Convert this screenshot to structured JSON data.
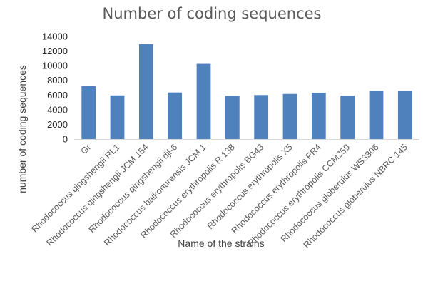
{
  "chart_data": {
    "type": "bar",
    "title": "Number of coding sequences",
    "xlabel": "Name of the strains",
    "ylabel": "number of coding sequences",
    "ylim": [
      0,
      14000
    ],
    "yticks": [
      0,
      2000,
      4000,
      6000,
      8000,
      10000,
      12000,
      14000
    ],
    "grid": false,
    "legend": "none",
    "bar_color": "#4F81BD",
    "categories": [
      "Gr",
      "Rhodococcus qingshengii RL1",
      "Rhodococcus qingshengii JCM 154",
      "Rhodococcus qingshengii djl-6",
      "Rhodococcus baikonurensis JCM 1",
      "Rhodococcus erythropolis R 138",
      "Rhodococcus erythropolis BG43",
      "Rhodococcus erythropolis X5",
      "Rhodococcus erythropolis PR4",
      "Rhodococcus erythropolis CCM259",
      "Rhodococcus globerulus WS3306",
      "Rhodococcus globerulus NBRC 145"
    ],
    "values": [
      7200,
      5950,
      12950,
      6350,
      10250,
      5900,
      6000,
      6150,
      6300,
      5900,
      6550,
      6550
    ]
  }
}
